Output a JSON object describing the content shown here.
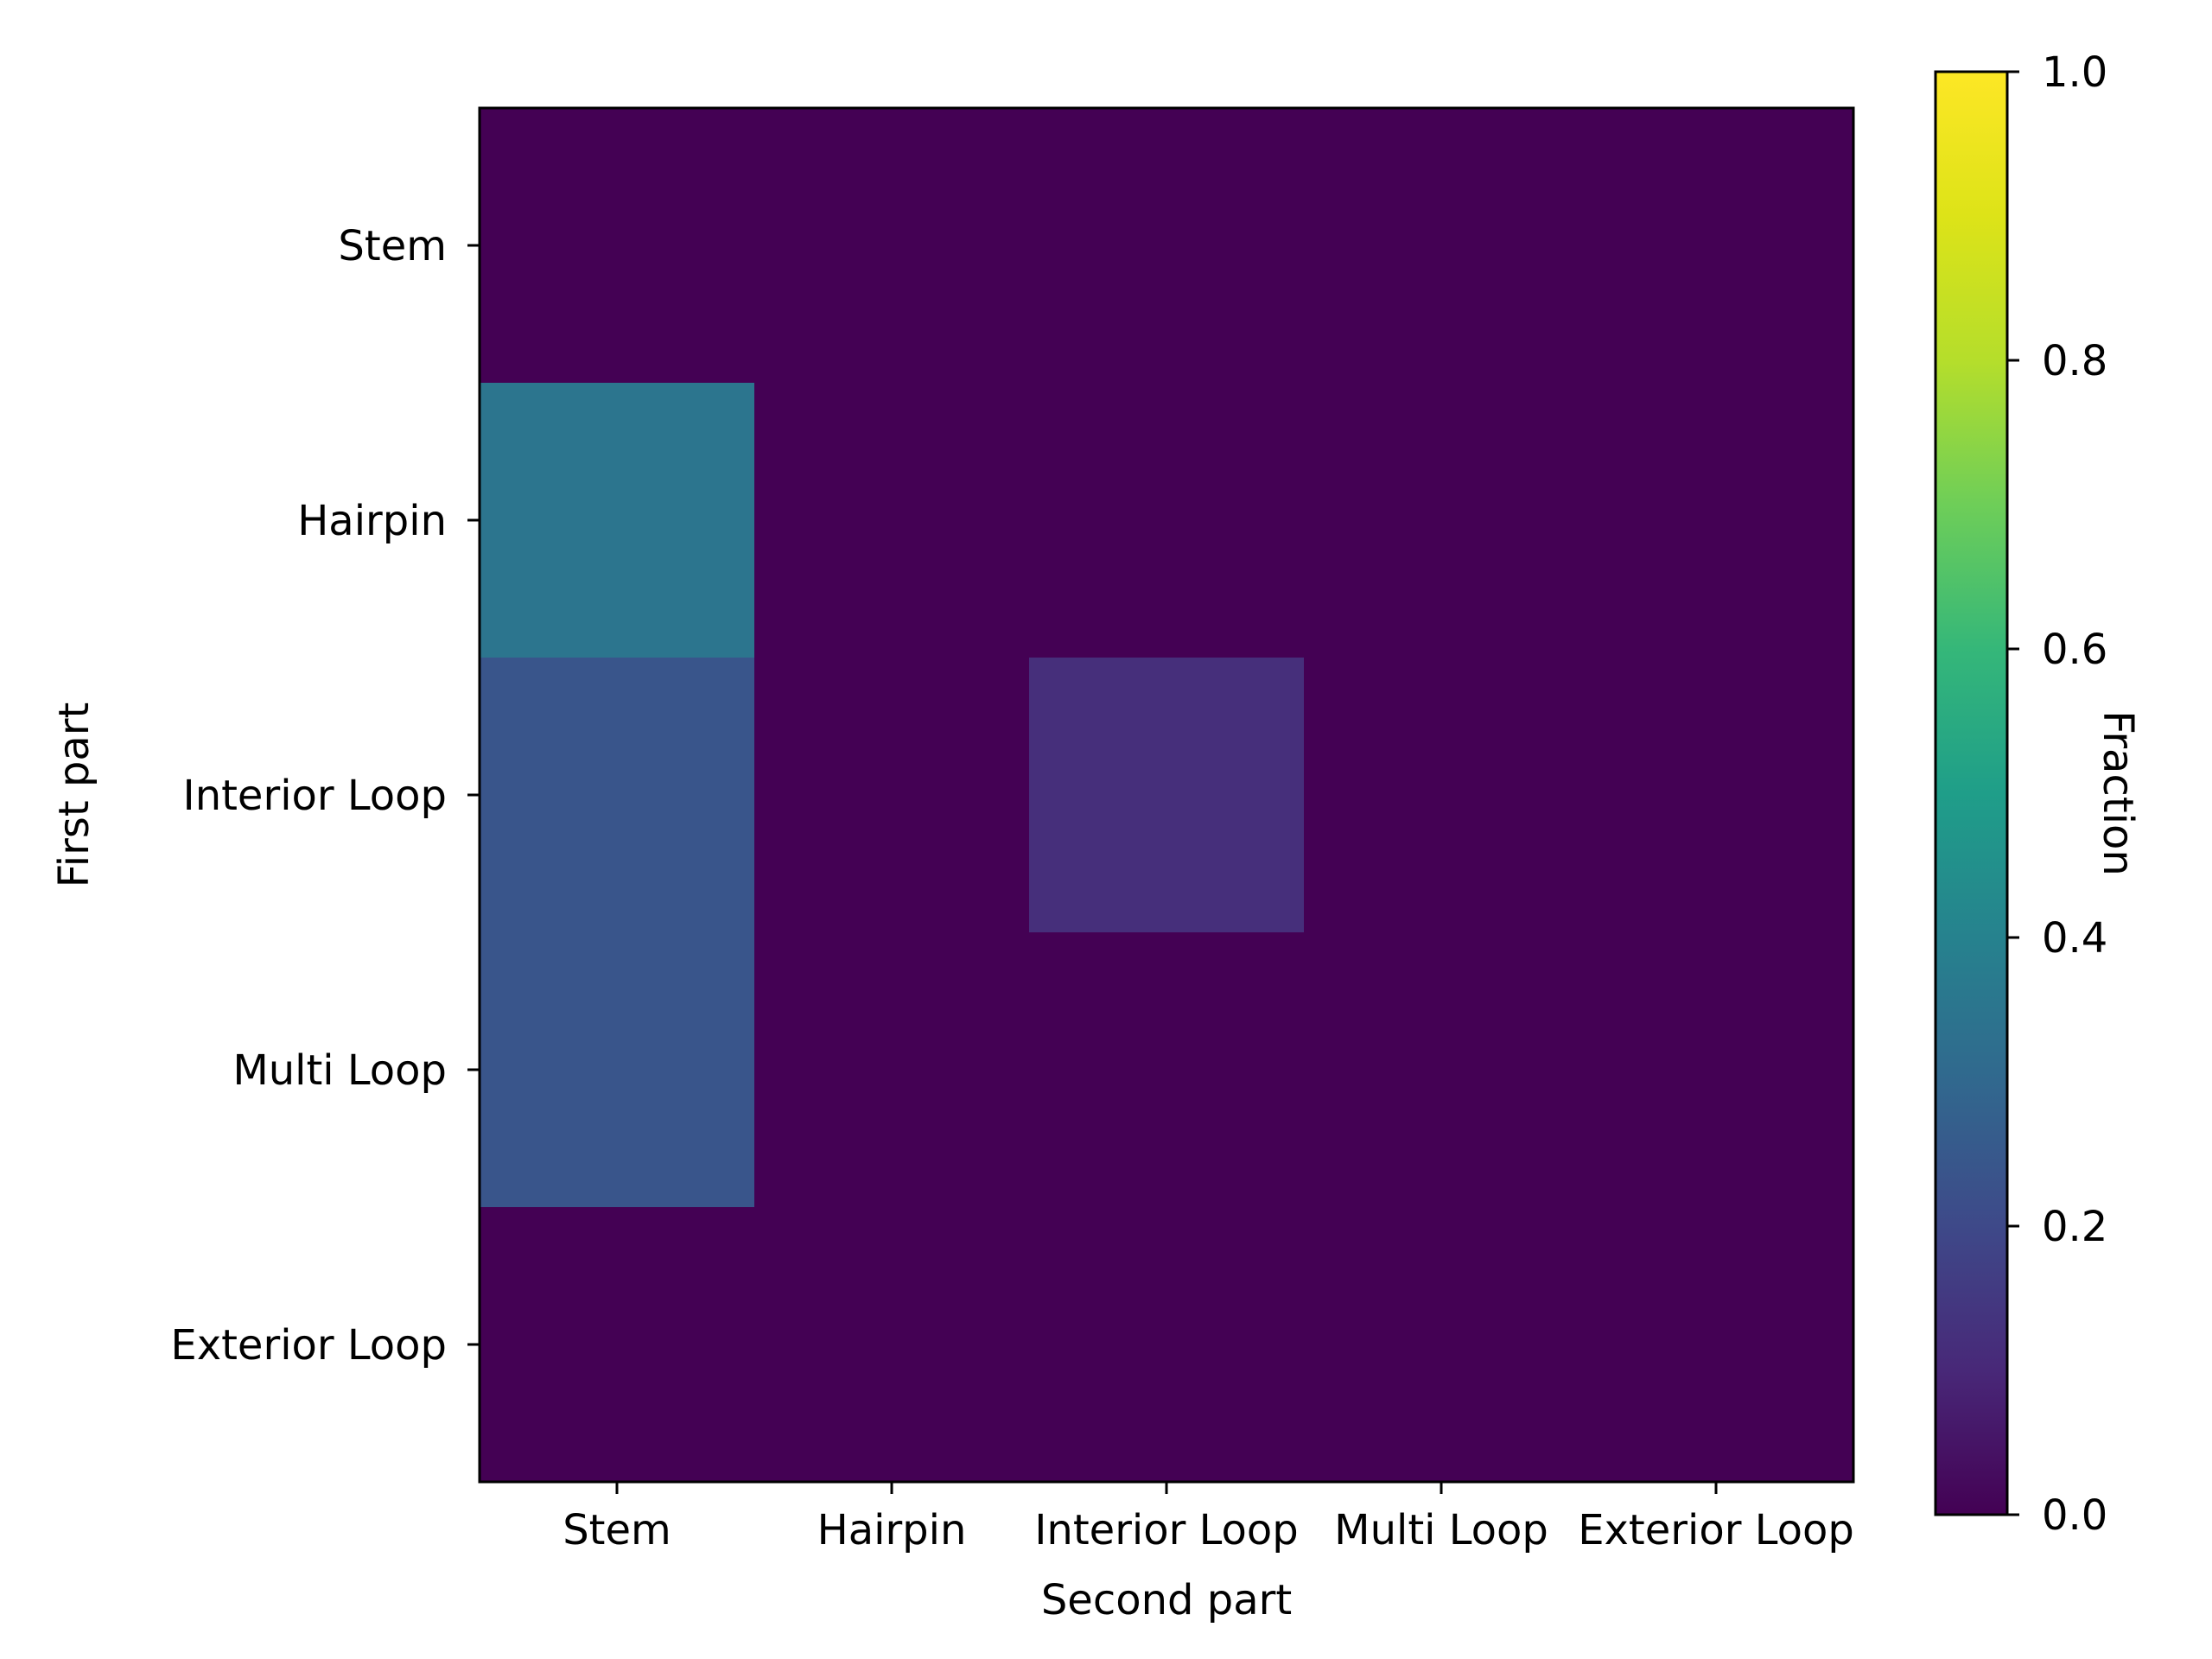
{
  "chart_data": {
    "type": "heatmap",
    "title": "",
    "xlabel": "Second part",
    "ylabel": "First part",
    "x_categories": [
      "Stem",
      "Hairpin",
      "Interior Loop",
      "Multi Loop",
      "Exterior Loop"
    ],
    "y_categories": [
      "Stem",
      "Hairpin",
      "Interior Loop",
      "Multi Loop",
      "Exterior Loop"
    ],
    "values": [
      [
        0.0,
        0.0,
        0.0,
        0.0,
        0.0
      ],
      [
        0.35,
        0.0,
        0.0,
        0.0,
        0.0
      ],
      [
        0.24,
        0.0,
        0.12,
        0.0,
        0.0
      ],
      [
        0.24,
        0.0,
        0.0,
        0.0,
        0.0
      ],
      [
        0.0,
        0.0,
        0.0,
        0.0,
        0.0
      ]
    ],
    "colorbar": {
      "label": "Fraction",
      "range": [
        0.0,
        1.0
      ],
      "ticks": [
        0.0,
        0.2,
        0.4,
        0.6,
        0.8,
        1.0
      ],
      "tick_labels": [
        "0.0",
        "0.2",
        "0.4",
        "0.6",
        "0.8",
        "1.0"
      ],
      "colormap": "viridis"
    },
    "grid": false
  }
}
